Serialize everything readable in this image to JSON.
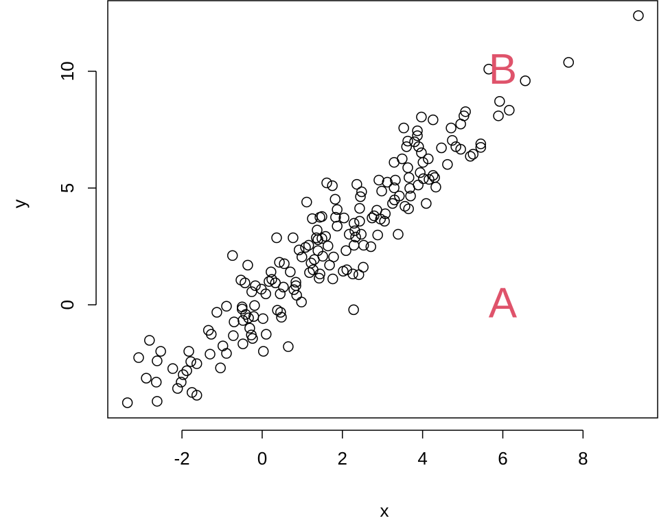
{
  "chart_data": {
    "type": "scatter",
    "xlabel": "x",
    "ylabel": "y",
    "x": [
      -3.36,
      -3.08,
      -2.81,
      -2.89,
      -2.62,
      -2.64,
      -2.62,
      -2.53,
      -2.23,
      -2.11,
      -2.02,
      -1.97,
      -1.88,
      -1.83,
      -1.78,
      -1.75,
      -1.63,
      -1.63,
      -1.34,
      -1.3,
      -1.27,
      -1.13,
      -1.04,
      -0.98,
      -0.89,
      -0.89,
      -0.74,
      -0.7,
      -0.72,
      -0.53,
      -0.5,
      -0.5,
      -0.48,
      -0.48,
      -0.43,
      -0.41,
      -0.36,
      -0.34,
      -0.31,
      -0.27,
      -0.26,
      -0.24,
      -0.21,
      -0.19,
      -0.17,
      -0.02,
      0.02,
      0.03,
      0.09,
      0.1,
      0.17,
      0.22,
      0.24,
      0.33,
      0.36,
      0.38,
      0.43,
      0.45,
      0.46,
      0.48,
      0.53,
      0.55,
      0.65,
      0.7,
      0.77,
      0.79,
      0.84,
      0.84,
      0.86,
      0.92,
      0.98,
      0.99,
      1.08,
      1.11,
      1.16,
      1.18,
      1.22,
      1.25,
      1.27,
      1.3,
      1.35,
      1.37,
      1.39,
      1.39,
      1.42,
      1.44,
      1.44,
      1.49,
      1.49,
      1.51,
      1.58,
      1.61,
      1.64,
      1.68,
      1.75,
      1.76,
      1.78,
      1.82,
      1.83,
      1.87,
      1.87,
      2.02,
      2.04,
      2.09,
      2.11,
      2.17,
      2.26,
      2.28,
      2.29,
      2.29,
      2.31,
      2.33,
      2.36,
      2.41,
      2.43,
      2.43,
      2.45,
      2.47,
      2.48,
      2.52,
      2.53,
      2.71,
      2.74,
      2.79,
      2.86,
      2.88,
      2.91,
      2.95,
      2.98,
      3.05,
      3.07,
      3.12,
      3.25,
      3.29,
      3.29,
      3.3,
      3.32,
      3.39,
      3.42,
      3.49,
      3.53,
      3.56,
      3.6,
      3.63,
      3.63,
      3.65,
      3.66,
      3.68,
      3.7,
      3.8,
      3.87,
      3.87,
      3.89,
      3.9,
      3.94,
      3.97,
      3.97,
      4.01,
      4.02,
      4.09,
      4.14,
      4.16,
      4.26,
      4.26,
      4.3,
      4.33,
      4.47,
      4.62,
      4.71,
      4.74,
      4.83,
      4.95,
      4.95,
      5.03,
      5.07,
      5.19,
      5.26,
      5.45,
      5.45,
      5.65,
      5.89,
      5.92,
      6.16,
      6.56,
      7.64,
      9.38
    ],
    "values": [
      -4.19,
      -2.26,
      -1.52,
      -3.14,
      -4.13,
      -3.31,
      -2.4,
      -1.99,
      -2.73,
      -3.58,
      -3.31,
      -2.99,
      -2.82,
      -1.99,
      -2.43,
      -3.75,
      -3.87,
      -2.52,
      -1.09,
      -2.11,
      -1.26,
      -0.32,
      -2.7,
      -1.76,
      -2.08,
      -0.06,
      2.11,
      -0.73,
      -1.32,
      1.06,
      -0.09,
      -0.18,
      -0.67,
      -1.67,
      0.94,
      -0.41,
      1.7,
      -0.56,
      -1.0,
      -1.29,
      0.56,
      -1.44,
      -0.5,
      -0.03,
      0.82,
      0.67,
      -0.59,
      -1.99,
      0.47,
      -1.26,
      1.0,
      1.41,
      1.09,
      0.94,
      2.87,
      -0.23,
      1.82,
      0.47,
      -0.32,
      -0.53,
      0.76,
      1.76,
      -1.79,
      1.41,
      2.87,
      0.65,
      0.82,
      0.97,
      0.41,
      2.35,
      0.12,
      2.05,
      2.46,
      4.4,
      2.55,
      1.38,
      1.79,
      3.69,
      1.5,
      1.94,
      2.87,
      3.2,
      2.79,
      2.32,
      1.14,
      1.32,
      3.75,
      2.84,
      3.78,
      2.08,
      2.93,
      5.22,
      2.52,
      1.7,
      5.1,
      1.11,
      2.05,
      4.52,
      3.75,
      4.08,
      3.37,
      1.44,
      3.72,
      2.32,
      1.5,
      3.02,
      1.32,
      -0.21,
      2.55,
      3.49,
      3.17,
      2.9,
      5.16,
      1.29,
      3.58,
      4.13,
      4.63,
      3.02,
      4.84,
      1.61,
      2.55,
      2.49,
      3.72,
      3.81,
      4.05,
      2.99,
      5.34,
      3.67,
      4.87,
      3.58,
      3.9,
      5.25,
      4.34,
      6.1,
      5.01,
      4.49,
      5.34,
      3.02,
      4.66,
      6.25,
      7.57,
      4.22,
      6.77,
      5.87,
      7.01,
      4.11,
      5.45,
      4.99,
      4.66,
      6.98,
      7.45,
      7.24,
      5.13,
      6.77,
      5.66,
      8.04,
      6.51,
      6.1,
      5.4,
      4.34,
      6.25,
      5.37,
      7.92,
      5.54,
      5.45,
      5.04,
      6.72,
      6.01,
      7.57,
      7.04,
      6.77,
      7.74,
      6.66,
      8.09,
      8.27,
      6.36,
      6.45,
      6.74,
      6.89,
      10.09,
      8.09,
      8.71,
      8.33,
      9.59,
      10.38,
      12.38
    ],
    "xlim": [
      -3.85,
      9.86
    ],
    "ylim": [
      -4.84,
      13.02
    ],
    "xticks": [
      -2,
      0,
      2,
      4,
      6,
      8
    ],
    "yticks": [
      0,
      5,
      10
    ],
    "color": "#000000",
    "annotations": [
      {
        "text": "B",
        "x": 6,
        "y": 10
      },
      {
        "text": "A",
        "x": 6,
        "y": 0
      }
    ],
    "annotation_color": "#DF536B"
  }
}
